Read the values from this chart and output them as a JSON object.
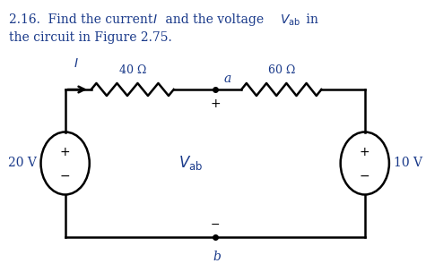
{
  "bg_color": "#ffffff",
  "circuit_color": "#000000",
  "label_color": "#1a3a8a",
  "resistor_40_label": "40 Ω",
  "resistor_60_label": "60 Ω",
  "v20_label": "20 V",
  "v10_label": "10 V",
  "vab_label": "V",
  "node_a_label": "a",
  "node_b_label": "b",
  "current_label": "I",
  "title_line1": "2.16.  Find the current ",
  "title_line2": "the circuit in Figure 2.75.",
  "title_I": "I",
  "title_V": "V",
  "title_ab": "ab",
  "title_rest": " and the voltage ",
  "title_in": " in"
}
